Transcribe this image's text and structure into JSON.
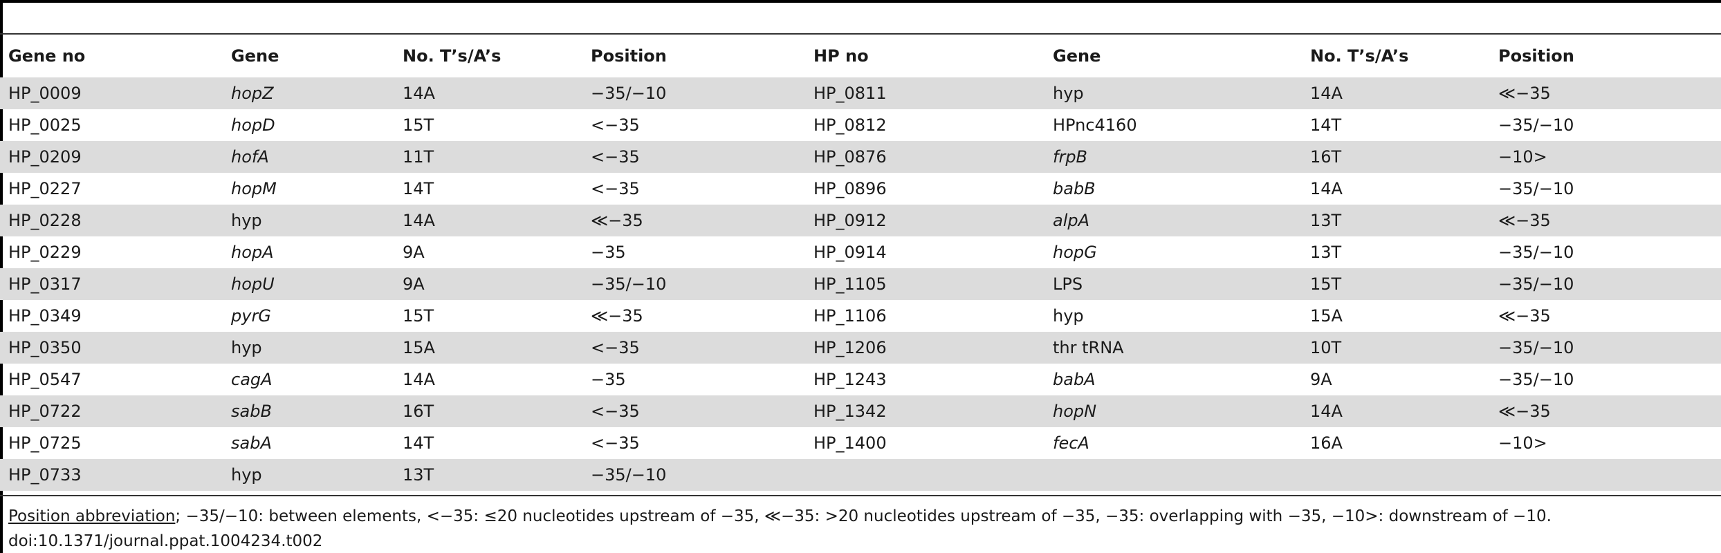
{
  "table": {
    "headers": [
      "Gene no",
      "Gene",
      "No. T’s/A’s",
      "Position",
      "HP no",
      "Gene",
      "No. T’s/A’s",
      "Position"
    ],
    "rows": [
      {
        "gene_no": "HP_0009",
        "gene": "hopZ",
        "gene_italic": true,
        "count": "14A",
        "position": "−35/−10",
        "hp_no": "HP_0811",
        "gene2": "hyp",
        "gene2_italic": false,
        "count2": "14A",
        "position2": "≪−35"
      },
      {
        "gene_no": "HP_0025",
        "gene": "hopD",
        "gene_italic": true,
        "count": "15T",
        "position": "<−35",
        "hp_no": "HP_0812",
        "gene2": "HPnc4160",
        "gene2_italic": false,
        "count2": "14T",
        "position2": "−35/−10"
      },
      {
        "gene_no": "HP_0209",
        "gene": "hofA",
        "gene_italic": true,
        "count": "11T",
        "position": "<−35",
        "hp_no": "HP_0876",
        "gene2": "frpB",
        "gene2_italic": true,
        "count2": "16T",
        "position2": "−10>"
      },
      {
        "gene_no": "HP_0227",
        "gene": "hopM",
        "gene_italic": true,
        "count": "14T",
        "position": "<−35",
        "hp_no": "HP_0896",
        "gene2": "babB",
        "gene2_italic": true,
        "count2": "14A",
        "position2": "−35/−10"
      },
      {
        "gene_no": "HP_0228",
        "gene": "hyp",
        "gene_italic": false,
        "count": "14A",
        "position": "≪−35",
        "hp_no": "HP_0912",
        "gene2": "alpA",
        "gene2_italic": true,
        "count2": "13T",
        "position2": "≪−35"
      },
      {
        "gene_no": "HP_0229",
        "gene": "hopA",
        "gene_italic": true,
        "count": "9A",
        "position": "−35",
        "hp_no": "HP_0914",
        "gene2": "hopG",
        "gene2_italic": true,
        "count2": "13T",
        "position2": "−35/−10"
      },
      {
        "gene_no": "HP_0317",
        "gene": "hopU",
        "gene_italic": true,
        "count": "9A",
        "position": "−35/−10",
        "hp_no": "HP_1105",
        "gene2": "LPS",
        "gene2_italic": false,
        "count2": "15T",
        "position2": "−35/−10"
      },
      {
        "gene_no": "HP_0349",
        "gene": "pyrG",
        "gene_italic": true,
        "count": "15T",
        "position": "≪−35",
        "hp_no": "HP_1106",
        "gene2": "hyp",
        "gene2_italic": false,
        "count2": "15A",
        "position2": "≪−35"
      },
      {
        "gene_no": "HP_0350",
        "gene": "hyp",
        "gene_italic": false,
        "count": "15A",
        "position": "<−35",
        "hp_no": "HP_1206",
        "gene2": "thr tRNA",
        "gene2_italic": false,
        "count2": "10T",
        "position2": "−35/−10"
      },
      {
        "gene_no": "HP_0547",
        "gene": "cagA",
        "gene_italic": true,
        "count": "14A",
        "position": "−35",
        "hp_no": "HP_1243",
        "gene2": "babA",
        "gene2_italic": true,
        "count2": "9A",
        "position2": "−35/−10"
      },
      {
        "gene_no": "HP_0722",
        "gene": "sabB",
        "gene_italic": true,
        "count": "16T",
        "position": "<−35",
        "hp_no": "HP_1342",
        "gene2": "hopN",
        "gene2_italic": true,
        "count2": "14A",
        "position2": "≪−35"
      },
      {
        "gene_no": "HP_0725",
        "gene": "sabA",
        "gene_italic": true,
        "count": "14T",
        "position": "<−35",
        "hp_no": "HP_1400",
        "gene2": "fecA",
        "gene2_italic": true,
        "count2": "16A",
        "position2": "−10>"
      },
      {
        "gene_no": "HP_0733",
        "gene": "hyp",
        "gene_italic": false,
        "count": "13T",
        "position": "−35/−10",
        "hp_no": "",
        "gene2": "",
        "gene2_italic": false,
        "count2": "",
        "position2": ""
      }
    ]
  },
  "footnote": {
    "abbr": "Position abbreviation",
    "text": "; −35/−10: between elements, <−35: ≤20 nucleotides upstream of −35, ≪−35: >20 nucleotides upstream of −35, −35: overlapping with −35, −10>: downstream of −10."
  },
  "doi": "doi:10.1371/journal.ppat.1004234.t002"
}
